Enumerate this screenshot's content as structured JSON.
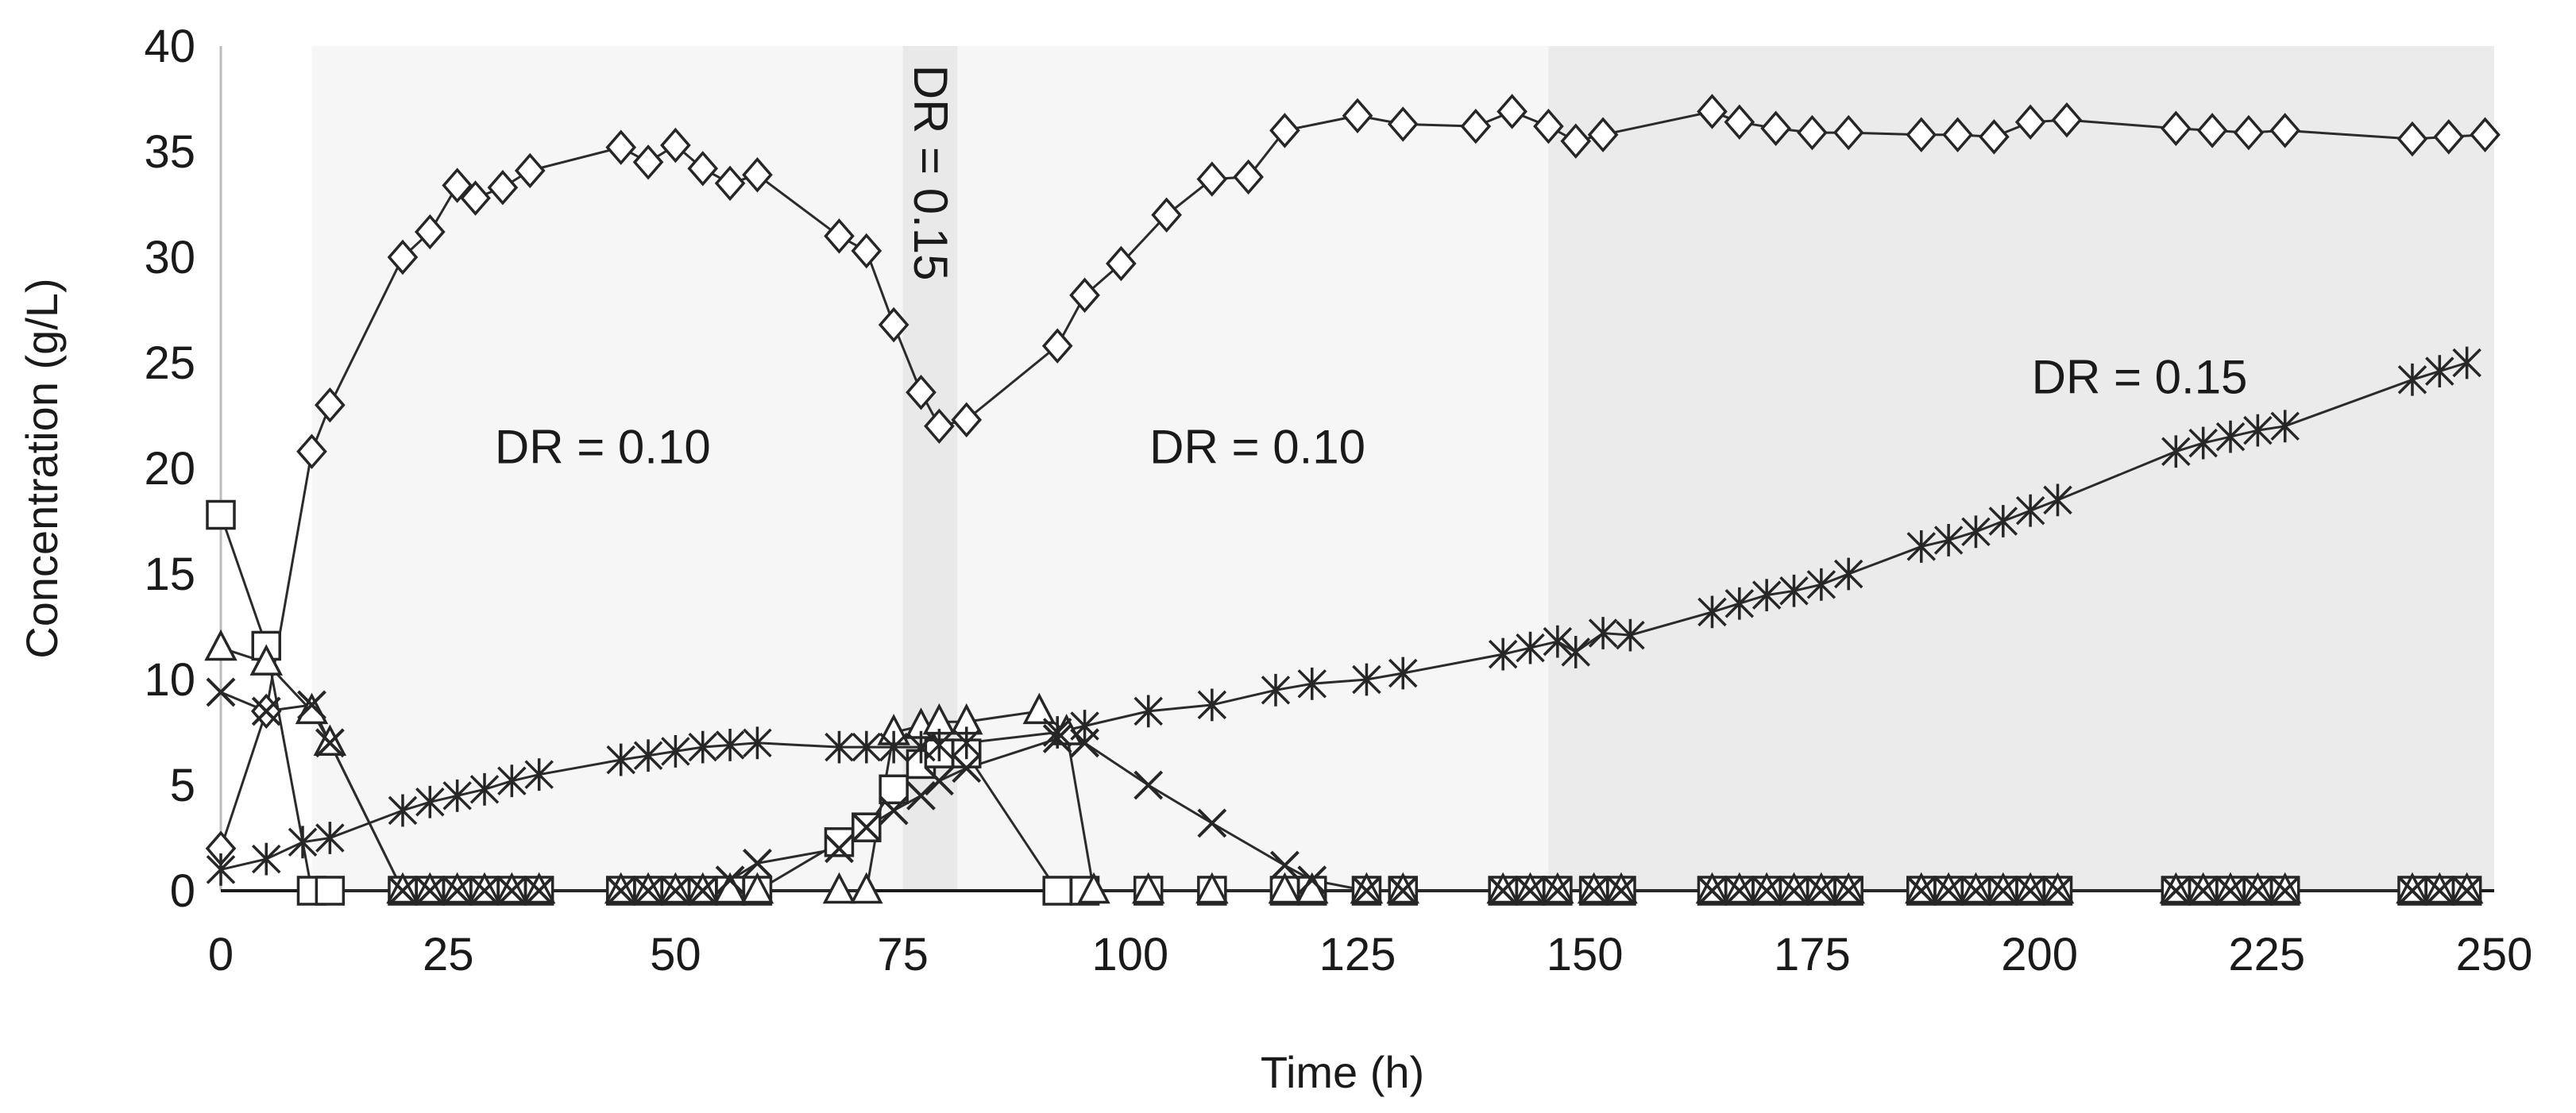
{
  "chart_data": {
    "type": "line",
    "title": "",
    "xlabel": "Time (h)",
    "ylabel": "Concentration (g/L)",
    "xlim": [
      0,
      250
    ],
    "ylim": [
      0,
      40
    ],
    "x_ticks": [
      0,
      25,
      50,
      75,
      100,
      125,
      150,
      175,
      200,
      225,
      250
    ],
    "y_ticks": [
      0,
      5,
      10,
      15,
      20,
      25,
      30,
      35,
      40
    ],
    "grid": false,
    "legend": "none",
    "regions": [
      {
        "x0": 10,
        "x1": 75,
        "label": "DR = 0.10",
        "label_x": 42,
        "label_y": 21,
        "shade": "#f6f6f6",
        "vertical": false
      },
      {
        "x0": 75,
        "x1": 81,
        "label": "DR = 0.15",
        "label_x": 78,
        "label_y": 34,
        "shade": "#e9e9e9",
        "vertical": true
      },
      {
        "x0": 81,
        "x1": 146,
        "label": "DR = 0.10",
        "label_x": 114,
        "label_y": 21,
        "shade": "#f6f6f6",
        "vertical": false
      },
      {
        "x0": 146,
        "x1": 250,
        "label": "DR = 0.15",
        "label_x": 211,
        "label_y": 24.3,
        "shade": "#ebebeb",
        "vertical": false
      }
    ],
    "series": [
      {
        "name": "diamond-series",
        "marker": "diamond",
        "line": true,
        "x": [
          0,
          5,
          10,
          12,
          20,
          23,
          26,
          28,
          31,
          34,
          44,
          47,
          50,
          53,
          56,
          59,
          68,
          71,
          74,
          77,
          79,
          82,
          92,
          95,
          99,
          104,
          109,
          113,
          117,
          125,
          130,
          138,
          142,
          146,
          149,
          152,
          164,
          167,
          171,
          175,
          179,
          187,
          191,
          195,
          199,
          203,
          215,
          219,
          223,
          227,
          241,
          245,
          249
        ],
        "values": [
          2,
          8.5,
          20.8,
          23,
          30,
          31.2,
          33.4,
          32.8,
          33.3,
          34.1,
          35.2,
          34.5,
          35.3,
          34.2,
          33.5,
          33.9,
          31,
          30.3,
          26.8,
          23.6,
          22,
          22.3,
          25.8,
          28.2,
          29.7,
          32,
          33.7,
          33.8,
          36,
          36.7,
          36.3,
          36.2,
          36.9,
          36.2,
          35.5,
          35.8,
          36.9,
          36.4,
          36.1,
          35.9,
          35.9,
          35.8,
          35.8,
          35.7,
          36.4,
          36.5,
          36.1,
          36,
          35.9,
          36,
          35.6,
          35.7,
          35.8
        ]
      },
      {
        "name": "square-series",
        "marker": "square",
        "line": true,
        "x": [
          0,
          5,
          10,
          12,
          20,
          23,
          26,
          29,
          32,
          35,
          44,
          47,
          50,
          53,
          56,
          59,
          68,
          71,
          74,
          77,
          79,
          82,
          92,
          95,
          102,
          109,
          117,
          120,
          126,
          130,
          141,
          144,
          147,
          151,
          154,
          164,
          167,
          170,
          173,
          176,
          179,
          187,
          190,
          193,
          196,
          199,
          202,
          215,
          218,
          221,
          224,
          227,
          241,
          244,
          247
        ],
        "values": [
          17.8,
          11.6,
          0,
          0,
          0,
          0,
          0,
          0,
          0,
          0,
          0,
          0,
          0,
          0,
          0,
          0,
          2.3,
          3,
          4.8,
          6,
          6.5,
          6.5,
          0,
          0,
          0,
          0,
          0,
          0,
          0,
          0,
          0,
          0,
          0,
          0,
          0,
          0,
          0,
          0,
          0,
          0,
          0,
          0,
          0,
          0,
          0,
          0,
          0,
          0,
          0,
          0,
          0,
          0,
          0,
          0,
          0
        ]
      },
      {
        "name": "triangle-series",
        "marker": "triangle",
        "line": true,
        "x": [
          0,
          5,
          10,
          12,
          20,
          23,
          26,
          29,
          32,
          35,
          44,
          47,
          50,
          53,
          56,
          59,
          68,
          71,
          74,
          77,
          79,
          82,
          90,
          93,
          96,
          102,
          109,
          117,
          120,
          126,
          130,
          141,
          144,
          147,
          151,
          154,
          164,
          167,
          170,
          173,
          176,
          179,
          187,
          190,
          193,
          196,
          199,
          202,
          215,
          218,
          221,
          224,
          227,
          241,
          244,
          247
        ],
        "values": [
          11.5,
          10.8,
          8.5,
          7,
          0,
          0,
          0,
          0,
          0,
          0,
          0,
          0,
          0,
          0,
          0,
          0,
          0,
          0,
          7.5,
          7.8,
          8,
          8,
          8.5,
          7.5,
          0,
          0,
          0,
          0,
          0,
          0,
          0,
          0,
          0,
          0,
          0,
          0,
          0,
          0,
          0,
          0,
          0,
          0,
          0,
          0,
          0,
          0,
          0,
          0,
          0,
          0,
          0,
          0,
          0,
          0,
          0,
          0
        ]
      },
      {
        "name": "x-series",
        "marker": "x",
        "line": true,
        "x": [
          0,
          5,
          10,
          12,
          20,
          23,
          26,
          29,
          32,
          35,
          44,
          47,
          50,
          53,
          56,
          59,
          68,
          71,
          74,
          77,
          79,
          82,
          92,
          95,
          102,
          109,
          117,
          120,
          126,
          130,
          141,
          144,
          147,
          151,
          154,
          164,
          167,
          170,
          173,
          176,
          179,
          187,
          190,
          193,
          196,
          199,
          202,
          215,
          218,
          221,
          224,
          227,
          241,
          244,
          247
        ],
        "values": [
          9.4,
          8.5,
          8.8,
          7,
          0,
          0,
          0,
          0,
          0,
          0,
          0,
          0,
          0,
          0,
          0.5,
          1.3,
          2,
          3,
          3.8,
          4.5,
          5.2,
          5.8,
          7.2,
          7,
          5,
          3.2,
          1.2,
          0.5,
          0,
          0,
          0,
          0,
          0,
          0,
          0,
          0,
          0,
          0,
          0,
          0,
          0,
          0,
          0,
          0,
          0,
          0,
          0,
          0,
          0,
          0,
          0,
          0,
          0,
          0,
          0
        ]
      },
      {
        "name": "asterisk-series",
        "marker": "asterisk",
        "line": true,
        "x": [
          0,
          5,
          9,
          12,
          20,
          23,
          26,
          29,
          32,
          35,
          44,
          47,
          50,
          53,
          56,
          59,
          68,
          71,
          74,
          77,
          79,
          82,
          92,
          95,
          102,
          109,
          116,
          120,
          126,
          130,
          141,
          144,
          147,
          149,
          152,
          155,
          164,
          167,
          170,
          173,
          176,
          179,
          187,
          190,
          193,
          196,
          199,
          202,
          215,
          218,
          221,
          224,
          227,
          241,
          244,
          247
        ],
        "values": [
          1,
          1.5,
          2.3,
          2.5,
          3.8,
          4.2,
          4.5,
          4.8,
          5.2,
          5.5,
          6.2,
          6.4,
          6.6,
          6.8,
          6.9,
          7,
          6.8,
          6.8,
          6.8,
          6.8,
          6.9,
          7,
          7.5,
          7.8,
          8.5,
          8.8,
          9.5,
          9.8,
          10,
          10.3,
          11.2,
          11.5,
          11.8,
          11.3,
          12.2,
          12.1,
          13.2,
          13.6,
          14,
          14.2,
          14.5,
          15,
          16.3,
          16.6,
          17,
          17.5,
          18,
          18.5,
          20.8,
          21.2,
          21.5,
          21.8,
          22,
          24.2,
          24.6,
          25
        ]
      }
    ]
  }
}
